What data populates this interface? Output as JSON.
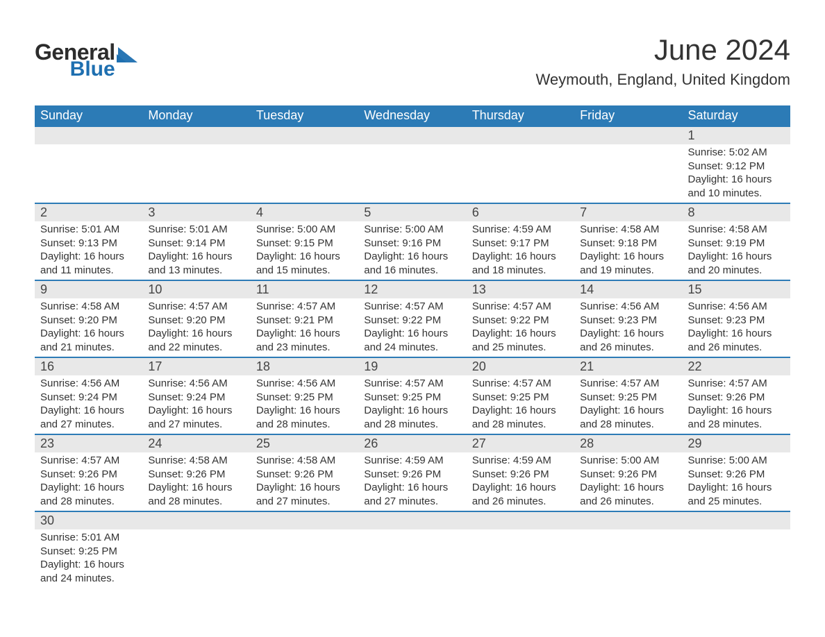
{
  "logo": {
    "word1": "General",
    "word2": "Blue"
  },
  "title": "June 2024",
  "location": "Weymouth, England, United Kingdom",
  "colors": {
    "header_blue": "#2c7bb6",
    "row_gray": "#e8e8e8",
    "text": "#3a3a3a",
    "logo_blue": "#1e6fb0"
  },
  "weekdays": [
    "Sunday",
    "Monday",
    "Tuesday",
    "Wednesday",
    "Thursday",
    "Friday",
    "Saturday"
  ],
  "weeks": [
    {
      "nums": [
        "",
        "",
        "",
        "",
        "",
        "",
        "1"
      ],
      "cells": [
        null,
        null,
        null,
        null,
        null,
        null,
        {
          "sunrise": "Sunrise: 5:02 AM",
          "sunset": "Sunset: 9:12 PM",
          "day1": "Daylight: 16 hours",
          "day2": "and 10 minutes."
        }
      ]
    },
    {
      "nums": [
        "2",
        "3",
        "4",
        "5",
        "6",
        "7",
        "8"
      ],
      "cells": [
        {
          "sunrise": "Sunrise: 5:01 AM",
          "sunset": "Sunset: 9:13 PM",
          "day1": "Daylight: 16 hours",
          "day2": "and 11 minutes."
        },
        {
          "sunrise": "Sunrise: 5:01 AM",
          "sunset": "Sunset: 9:14 PM",
          "day1": "Daylight: 16 hours",
          "day2": "and 13 minutes."
        },
        {
          "sunrise": "Sunrise: 5:00 AM",
          "sunset": "Sunset: 9:15 PM",
          "day1": "Daylight: 16 hours",
          "day2": "and 15 minutes."
        },
        {
          "sunrise": "Sunrise: 5:00 AM",
          "sunset": "Sunset: 9:16 PM",
          "day1": "Daylight: 16 hours",
          "day2": "and 16 minutes."
        },
        {
          "sunrise": "Sunrise: 4:59 AM",
          "sunset": "Sunset: 9:17 PM",
          "day1": "Daylight: 16 hours",
          "day2": "and 18 minutes."
        },
        {
          "sunrise": "Sunrise: 4:58 AM",
          "sunset": "Sunset: 9:18 PM",
          "day1": "Daylight: 16 hours",
          "day2": "and 19 minutes."
        },
        {
          "sunrise": "Sunrise: 4:58 AM",
          "sunset": "Sunset: 9:19 PM",
          "day1": "Daylight: 16 hours",
          "day2": "and 20 minutes."
        }
      ]
    },
    {
      "nums": [
        "9",
        "10",
        "11",
        "12",
        "13",
        "14",
        "15"
      ],
      "cells": [
        {
          "sunrise": "Sunrise: 4:58 AM",
          "sunset": "Sunset: 9:20 PM",
          "day1": "Daylight: 16 hours",
          "day2": "and 21 minutes."
        },
        {
          "sunrise": "Sunrise: 4:57 AM",
          "sunset": "Sunset: 9:20 PM",
          "day1": "Daylight: 16 hours",
          "day2": "and 22 minutes."
        },
        {
          "sunrise": "Sunrise: 4:57 AM",
          "sunset": "Sunset: 9:21 PM",
          "day1": "Daylight: 16 hours",
          "day2": "and 23 minutes."
        },
        {
          "sunrise": "Sunrise: 4:57 AM",
          "sunset": "Sunset: 9:22 PM",
          "day1": "Daylight: 16 hours",
          "day2": "and 24 minutes."
        },
        {
          "sunrise": "Sunrise: 4:57 AM",
          "sunset": "Sunset: 9:22 PM",
          "day1": "Daylight: 16 hours",
          "day2": "and 25 minutes."
        },
        {
          "sunrise": "Sunrise: 4:56 AM",
          "sunset": "Sunset: 9:23 PM",
          "day1": "Daylight: 16 hours",
          "day2": "and 26 minutes."
        },
        {
          "sunrise": "Sunrise: 4:56 AM",
          "sunset": "Sunset: 9:23 PM",
          "day1": "Daylight: 16 hours",
          "day2": "and 26 minutes."
        }
      ]
    },
    {
      "nums": [
        "16",
        "17",
        "18",
        "19",
        "20",
        "21",
        "22"
      ],
      "cells": [
        {
          "sunrise": "Sunrise: 4:56 AM",
          "sunset": "Sunset: 9:24 PM",
          "day1": "Daylight: 16 hours",
          "day2": "and 27 minutes."
        },
        {
          "sunrise": "Sunrise: 4:56 AM",
          "sunset": "Sunset: 9:24 PM",
          "day1": "Daylight: 16 hours",
          "day2": "and 27 minutes."
        },
        {
          "sunrise": "Sunrise: 4:56 AM",
          "sunset": "Sunset: 9:25 PM",
          "day1": "Daylight: 16 hours",
          "day2": "and 28 minutes."
        },
        {
          "sunrise": "Sunrise: 4:57 AM",
          "sunset": "Sunset: 9:25 PM",
          "day1": "Daylight: 16 hours",
          "day2": "and 28 minutes."
        },
        {
          "sunrise": "Sunrise: 4:57 AM",
          "sunset": "Sunset: 9:25 PM",
          "day1": "Daylight: 16 hours",
          "day2": "and 28 minutes."
        },
        {
          "sunrise": "Sunrise: 4:57 AM",
          "sunset": "Sunset: 9:25 PM",
          "day1": "Daylight: 16 hours",
          "day2": "and 28 minutes."
        },
        {
          "sunrise": "Sunrise: 4:57 AM",
          "sunset": "Sunset: 9:26 PM",
          "day1": "Daylight: 16 hours",
          "day2": "and 28 minutes."
        }
      ]
    },
    {
      "nums": [
        "23",
        "24",
        "25",
        "26",
        "27",
        "28",
        "29"
      ],
      "cells": [
        {
          "sunrise": "Sunrise: 4:57 AM",
          "sunset": "Sunset: 9:26 PM",
          "day1": "Daylight: 16 hours",
          "day2": "and 28 minutes."
        },
        {
          "sunrise": "Sunrise: 4:58 AM",
          "sunset": "Sunset: 9:26 PM",
          "day1": "Daylight: 16 hours",
          "day2": "and 28 minutes."
        },
        {
          "sunrise": "Sunrise: 4:58 AM",
          "sunset": "Sunset: 9:26 PM",
          "day1": "Daylight: 16 hours",
          "day2": "and 27 minutes."
        },
        {
          "sunrise": "Sunrise: 4:59 AM",
          "sunset": "Sunset: 9:26 PM",
          "day1": "Daylight: 16 hours",
          "day2": "and 27 minutes."
        },
        {
          "sunrise": "Sunrise: 4:59 AM",
          "sunset": "Sunset: 9:26 PM",
          "day1": "Daylight: 16 hours",
          "day2": "and 26 minutes."
        },
        {
          "sunrise": "Sunrise: 5:00 AM",
          "sunset": "Sunset: 9:26 PM",
          "day1": "Daylight: 16 hours",
          "day2": "and 26 minutes."
        },
        {
          "sunrise": "Sunrise: 5:00 AM",
          "sunset": "Sunset: 9:26 PM",
          "day1": "Daylight: 16 hours",
          "day2": "and 25 minutes."
        }
      ]
    },
    {
      "nums": [
        "30",
        "",
        "",
        "",
        "",
        "",
        ""
      ],
      "cells": [
        {
          "sunrise": "Sunrise: 5:01 AM",
          "sunset": "Sunset: 9:25 PM",
          "day1": "Daylight: 16 hours",
          "day2": "and 24 minutes."
        },
        null,
        null,
        null,
        null,
        null,
        null
      ]
    }
  ]
}
